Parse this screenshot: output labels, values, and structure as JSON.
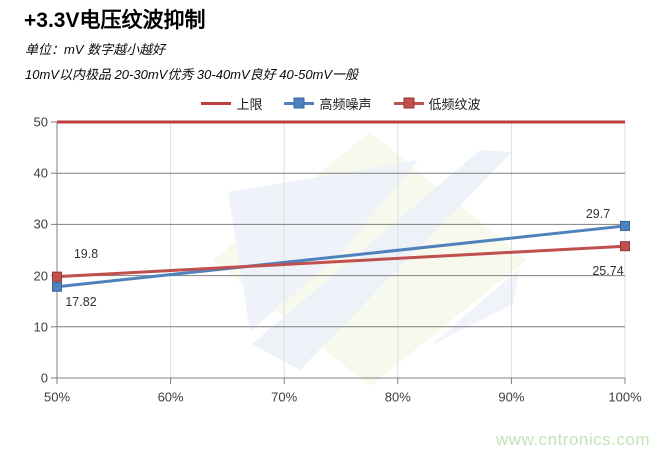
{
  "header": {
    "title": "+3.3V电压纹波抑制",
    "subtitle_units": "单位：mV  数字越小越好",
    "subtitle_grading": "10mV以内极品  20-30mV优秀  30-40mV良好  40-50mV一般"
  },
  "watermark": {
    "text": "www.cntronics.com",
    "color": "#c5e3b8"
  },
  "chart_data": {
    "type": "line",
    "title": "+3.3V电压纹波抑制",
    "xlabel": "",
    "ylabel": "",
    "unit": "mV",
    "xlim": [
      50,
      100
    ],
    "ylim": [
      0,
      50
    ],
    "x_ticks": [
      "50%",
      "60%",
      "70%",
      "80%",
      "90%",
      "100%"
    ],
    "x_tick_values": [
      50,
      60,
      70,
      80,
      90,
      100
    ],
    "y_ticks": [
      0,
      10,
      20,
      30,
      40,
      50
    ],
    "grid": true,
    "legend_position": "top",
    "axis_color": "#808080",
    "h_grid_color": "#7f7f7f",
    "v_grid_color": "#dedede",
    "series": [
      {
        "name": "上限",
        "color": "#bf3f3f",
        "marker": "none",
        "points": [
          {
            "x": 50,
            "y": 50
          },
          {
            "x": 100,
            "y": 50
          }
        ]
      },
      {
        "name": "高频噪声",
        "color": "#4f81bd",
        "border": "#3a6496",
        "marker": "square",
        "points": [
          {
            "x": 50,
            "y": 17.82,
            "label": "17.82",
            "label_offset": [
              24,
              15
            ]
          },
          {
            "x": 100,
            "y": 29.7,
            "label": "29.7",
            "label_offset": [
              -27,
              -12
            ]
          }
        ]
      },
      {
        "name": "低频纹波",
        "color": "#c0504d",
        "border": "#943634",
        "marker": "square",
        "points": [
          {
            "x": 50,
            "y": 19.8,
            "label": "19.8",
            "label_offset": [
              29,
              -23
            ]
          },
          {
            "x": 100,
            "y": 25.74,
            "label": "25.74",
            "label_offset": [
              -17,
              25
            ]
          }
        ]
      }
    ]
  }
}
